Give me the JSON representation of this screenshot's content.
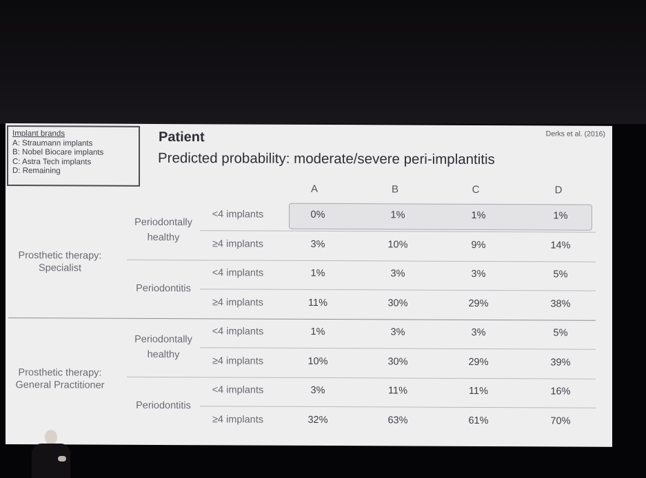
{
  "legend": {
    "title": "Implant brands",
    "items": [
      "A: Straumann implants",
      "B: Nobel Biocare implants",
      "C: Astra Tech implants",
      "D: Remaining"
    ]
  },
  "header": {
    "title": "Patient",
    "subtitle": "Predicted probability: moderate/severe peri-implantitis",
    "citation": "Derks et al. (2016)"
  },
  "table": {
    "columns": [
      "A",
      "B",
      "C",
      "D"
    ],
    "groups": [
      {
        "label": [
          "Prosthetic therapy:",
          "Specialist"
        ],
        "conditions": [
          {
            "label": [
              "Periodontally",
              "healthy"
            ],
            "rows": [
              {
                "implants": "<4 implants",
                "values": [
                  "0%",
                  "1%",
                  "1%",
                  "1%"
                ]
              },
              {
                "implants": "≥4 implants",
                "values": [
                  "3%",
                  "10%",
                  "9%",
                  "14%"
                ]
              }
            ]
          },
          {
            "label": [
              "Periodontitis"
            ],
            "rows": [
              {
                "implants": "<4 implants",
                "values": [
                  "1%",
                  "3%",
                  "3%",
                  "5%"
                ]
              },
              {
                "implants": "≥4 implants",
                "values": [
                  "11%",
                  "30%",
                  "29%",
                  "38%"
                ]
              }
            ]
          }
        ]
      },
      {
        "label": [
          "Prosthetic therapy:",
          "General Practitioner"
        ],
        "conditions": [
          {
            "label": [
              "Periodontally",
              "healthy"
            ],
            "rows": [
              {
                "implants": "<4 implants",
                "values": [
                  "1%",
                  "3%",
                  "3%",
                  "5%"
                ]
              },
              {
                "implants": "≥4 implants",
                "values": [
                  "10%",
                  "30%",
                  "29%",
                  "39%"
                ]
              }
            ]
          },
          {
            "label": [
              "Periodontitis"
            ],
            "rows": [
              {
                "implants": "<4 implants",
                "values": [
                  "3%",
                  "11%",
                  "11%",
                  "16%"
                ]
              },
              {
                "implants": "≥4 implants",
                "values": [
                  "32%",
                  "63%",
                  "61%",
                  "70%"
                ]
              }
            ]
          }
        ]
      }
    ]
  }
}
